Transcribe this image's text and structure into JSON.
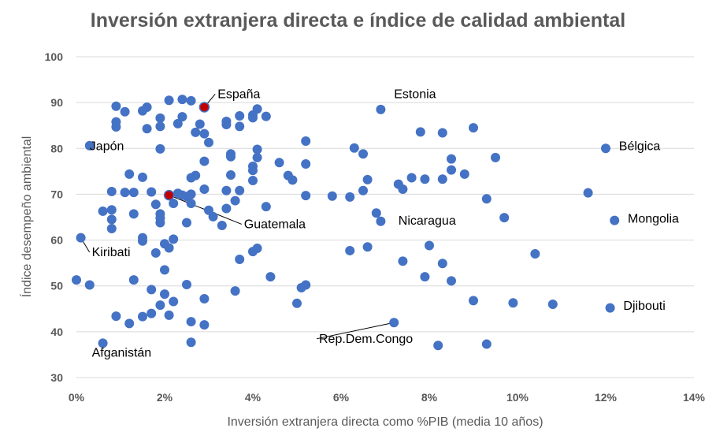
{
  "chart_data": {
    "type": "scatter",
    "title": "Inversión extranjera directa e índice de calidad ambiental",
    "xlabel": "Inversión extranjera directa como %PIB (media 10 años)",
    "ylabel": "Índice desempeño ambiental",
    "xlim": [
      0,
      14
    ],
    "ylim": [
      30,
      100
    ],
    "x_ticks": [
      0,
      2,
      4,
      6,
      8,
      10,
      12,
      14
    ],
    "x_tick_labels": [
      "0%",
      "2%",
      "4%",
      "6%",
      "8%",
      "10%",
      "12%",
      "14%"
    ],
    "y_ticks": [
      30,
      40,
      50,
      60,
      70,
      80,
      90,
      100
    ],
    "y_tick_labels": [
      "30",
      "40",
      "50",
      "60",
      "70",
      "80",
      "90",
      "100"
    ],
    "grid": "horizontal",
    "marker_color": "#4472c4",
    "highlight_color": "#c00000",
    "points": [
      [
        0.0,
        51.3
      ],
      [
        0.3,
        50.2
      ],
      [
        0.3,
        80.6
      ],
      [
        0.1,
        60.5
      ],
      [
        0.6,
        37.5
      ],
      [
        0.6,
        66.3
      ],
      [
        0.8,
        62.5
      ],
      [
        0.8,
        64.5
      ],
      [
        0.8,
        66.6
      ],
      [
        0.8,
        70.6
      ],
      [
        0.9,
        89.2
      ],
      [
        0.9,
        85.8
      ],
      [
        0.9,
        84.7
      ],
      [
        0.9,
        43.4
      ],
      [
        1.1,
        88.0
      ],
      [
        1.1,
        70.4
      ],
      [
        1.2,
        74.4
      ],
      [
        1.2,
        41.8
      ],
      [
        1.3,
        65.7
      ],
      [
        1.3,
        70.4
      ],
      [
        1.3,
        51.3
      ],
      [
        1.5,
        88.2
      ],
      [
        1.5,
        73.7
      ],
      [
        1.5,
        60.5
      ],
      [
        1.5,
        59.8
      ],
      [
        1.5,
        43.3
      ],
      [
        1.6,
        84.3
      ],
      [
        1.6,
        89.0
      ],
      [
        1.7,
        70.5
      ],
      [
        1.7,
        49.2
      ],
      [
        1.7,
        44.0
      ],
      [
        1.8,
        57.2
      ],
      [
        1.8,
        67.8
      ],
      [
        1.9,
        86.6
      ],
      [
        1.9,
        84.8
      ],
      [
        1.9,
        65.7
      ],
      [
        1.9,
        64.8
      ],
      [
        1.9,
        63.8
      ],
      [
        1.9,
        79.9
      ],
      [
        1.9,
        45.8
      ],
      [
        2.0,
        48.2
      ],
      [
        2.0,
        59.2
      ],
      [
        2.0,
        53.5
      ],
      [
        2.1,
        90.5
      ],
      [
        2.1,
        43.6
      ],
      [
        2.1,
        58.3
      ],
      [
        2.2,
        46.6
      ],
      [
        2.2,
        60.2
      ],
      [
        2.2,
        68.0
      ],
      [
        2.3,
        85.4
      ],
      [
        2.3,
        70.2
      ],
      [
        2.4,
        86.9
      ],
      [
        2.4,
        69.8
      ],
      [
        2.4,
        90.7
      ],
      [
        2.5,
        69.5
      ],
      [
        2.5,
        63.8
      ],
      [
        2.5,
        50.3
      ],
      [
        2.6,
        37.7
      ],
      [
        2.6,
        42.2
      ],
      [
        2.6,
        73.6
      ],
      [
        2.6,
        90.4
      ],
      [
        2.6,
        68.0
      ],
      [
        2.6,
        70.0
      ],
      [
        2.7,
        83.5
      ],
      [
        2.7,
        74.1
      ],
      [
        2.8,
        85.3
      ],
      [
        2.9,
        47.2
      ],
      [
        2.9,
        41.5
      ],
      [
        2.9,
        77.2
      ],
      [
        2.9,
        71.1
      ],
      [
        2.9,
        83.2
      ],
      [
        3.0,
        66.5
      ],
      [
        3.0,
        81.3
      ],
      [
        3.1,
        65.1
      ],
      [
        3.3,
        63.2
      ],
      [
        3.4,
        85.2
      ],
      [
        3.4,
        85.9
      ],
      [
        3.4,
        70.8
      ],
      [
        3.4,
        66.9
      ],
      [
        3.5,
        78.8
      ],
      [
        3.5,
        78.2
      ],
      [
        3.5,
        74.2
      ],
      [
        3.6,
        48.9
      ],
      [
        3.6,
        68.6
      ],
      [
        3.7,
        87.1
      ],
      [
        3.7,
        84.8
      ],
      [
        3.7,
        70.8
      ],
      [
        3.7,
        55.8
      ],
      [
        4.0,
        87.3
      ],
      [
        4.0,
        86.7
      ],
      [
        4.0,
        76.1
      ],
      [
        4.0,
        75.2
      ],
      [
        4.0,
        73.0
      ],
      [
        4.0,
        57.5
      ],
      [
        4.1,
        88.6
      ],
      [
        4.1,
        79.8
      ],
      [
        4.1,
        78.0
      ],
      [
        4.1,
        58.2
      ],
      [
        4.3,
        87.0
      ],
      [
        4.3,
        67.3
      ],
      [
        4.4,
        52.0
      ],
      [
        4.6,
        76.9
      ],
      [
        4.8,
        74.1
      ],
      [
        4.9,
        73.1
      ],
      [
        5.0,
        46.2
      ],
      [
        5.1,
        49.6
      ],
      [
        5.2,
        50.2
      ],
      [
        5.2,
        81.6
      ],
      [
        5.2,
        76.6
      ],
      [
        5.2,
        69.7
      ],
      [
        5.8,
        69.6
      ],
      [
        6.2,
        57.7
      ],
      [
        6.2,
        69.4
      ],
      [
        6.3,
        80.1
      ],
      [
        6.5,
        78.8
      ],
      [
        6.5,
        70.8
      ],
      [
        6.6,
        73.2
      ],
      [
        6.6,
        58.5
      ],
      [
        6.8,
        65.9
      ],
      [
        6.9,
        88.5
      ],
      [
        6.9,
        64.1
      ],
      [
        7.2,
        42.0
      ],
      [
        7.3,
        72.2
      ],
      [
        7.4,
        71.1
      ],
      [
        7.4,
        55.4
      ],
      [
        7.6,
        73.6
      ],
      [
        7.8,
        83.6
      ],
      [
        7.9,
        73.3
      ],
      [
        7.9,
        52.0
      ],
      [
        8.0,
        58.8
      ],
      [
        8.2,
        37.0
      ],
      [
        8.3,
        83.4
      ],
      [
        8.3,
        73.3
      ],
      [
        8.3,
        54.9
      ],
      [
        8.5,
        77.7
      ],
      [
        8.5,
        75.3
      ],
      [
        8.5,
        51.1
      ],
      [
        8.8,
        74.4
      ],
      [
        9.0,
        84.5
      ],
      [
        9.0,
        46.8
      ],
      [
        9.3,
        69.0
      ],
      [
        9.3,
        37.3
      ],
      [
        9.5,
        78.0
      ],
      [
        9.7,
        64.9
      ],
      [
        9.9,
        46.3
      ],
      [
        10.4,
        57.0
      ],
      [
        10.8,
        46.0
      ],
      [
        11.6,
        70.3
      ],
      [
        12.0,
        80.0
      ],
      [
        12.2,
        64.3
      ],
      [
        12.1,
        45.2
      ],
      [
        2.9,
        89.0
      ],
      [
        2.1,
        69.8
      ]
    ],
    "highlighted": [
      "España",
      "Guatemala"
    ],
    "annotations": [
      {
        "label": "España",
        "x": 2.9,
        "y": 89.0,
        "tx": 3.2,
        "ty": 91.0,
        "anchor": "start",
        "leader": true
      },
      {
        "label": "Estonia",
        "x": 6.9,
        "y": 88.5,
        "tx": 7.2,
        "ty": 91.0,
        "anchor": "start",
        "leader": false
      },
      {
        "label": "Japón",
        "x": 0.3,
        "y": 80.6,
        "tx": 0.3,
        "ty": 79.6,
        "anchor": "start",
        "leader": false
      },
      {
        "label": "Bélgica",
        "x": 12.0,
        "y": 80.0,
        "tx": 12.3,
        "ty": 79.6,
        "anchor": "start",
        "leader": false
      },
      {
        "label": "Guatemala",
        "x": 2.1,
        "y": 69.8,
        "tx": 3.8,
        "ty": 62.6,
        "anchor": "start",
        "leader": true
      },
      {
        "label": "Nicaragua",
        "x": 6.9,
        "y": 64.1,
        "tx": 7.3,
        "ty": 63.4,
        "anchor": "start",
        "leader": false
      },
      {
        "label": "Mongolia",
        "x": 12.2,
        "y": 64.3,
        "tx": 12.5,
        "ty": 63.8,
        "anchor": "start",
        "leader": false
      },
      {
        "label": "Kiribati",
        "x": 0.1,
        "y": 60.5,
        "tx": 0.35,
        "ty": 56.5,
        "anchor": "start",
        "leader": true
      },
      {
        "label": "Djibouti",
        "x": 12.1,
        "y": 45.2,
        "tx": 12.4,
        "ty": 44.8,
        "anchor": "start",
        "leader": false
      },
      {
        "label": "Rep.Dem.Congo",
        "x": 7.2,
        "y": 42.0,
        "tx": 5.5,
        "ty": 37.6,
        "anchor": "start",
        "leader": true
      },
      {
        "label": "Afganistán",
        "x": 0.6,
        "y": 37.5,
        "tx": 0.35,
        "ty": 34.6,
        "anchor": "start",
        "leader": false
      }
    ]
  }
}
